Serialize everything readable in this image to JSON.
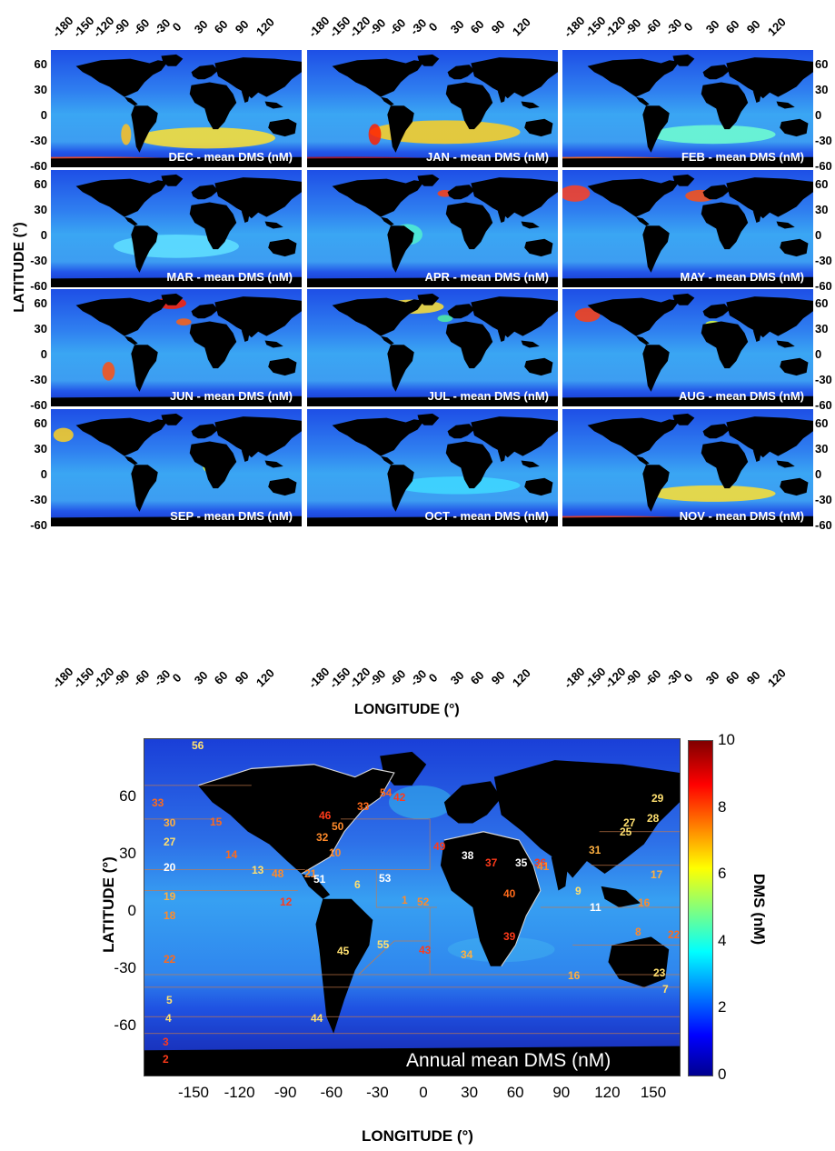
{
  "top_grid": {
    "lon_ticks": [
      "-180",
      "-150",
      "-120",
      "-90",
      "-60",
      "-30",
      "0",
      "30",
      "60",
      "90",
      "120"
    ],
    "lat_ticks": [
      "60",
      "30",
      "0",
      "-30",
      "-60"
    ],
    "x_title": "LONGITUDE (°)",
    "y_title": "LATITUDE (°)",
    "panels": [
      {
        "label": "DEC   - mean DMS (nM)"
      },
      {
        "label": "JAN   - mean DMS (nM)"
      },
      {
        "label": "FEB   - mean DMS (nM)"
      },
      {
        "label": "MAR   - mean DMS (nM)"
      },
      {
        "label": "APR   - mean DMS (nM)"
      },
      {
        "label": "MAY   - mean DMS (nM)"
      },
      {
        "label": "JUN   - mean DMS (nM)"
      },
      {
        "label": "JUL   - mean DMS (nM)"
      },
      {
        "label": "AUG   - mean DMS (nM)"
      },
      {
        "label": "SEP   - mean DMS (nM)"
      },
      {
        "label": "OCT   - mean DMS (nM)"
      },
      {
        "label": "NOV   - mean DMS (nM)"
      }
    ]
  },
  "annual_map": {
    "label": "Annual mean DMS (nM)",
    "x_title": "LONGITUDE (°)",
    "y_title": "LATITUDE (°)",
    "lon_ticks": [
      "-150",
      "-120",
      "-90",
      "-60",
      "-30",
      "0",
      "30",
      "60",
      "90",
      "120",
      "150"
    ],
    "lat_ticks": [
      "60",
      "30",
      "0",
      "-30",
      "-60"
    ],
    "colorbar": {
      "title": "DMS (nM)",
      "ticks": [
        "10",
        "8",
        "6",
        "4",
        "2",
        "0"
      ],
      "range": [
        0,
        10
      ],
      "colors": [
        "#00008f",
        "#0000ff",
        "#00ffff",
        "#ffff00",
        "#ff0000",
        "#800000"
      ]
    },
    "regions": [
      {
        "num": "56",
        "color": "#ffe070"
      },
      {
        "num": "33",
        "color": "#ff6a1a"
      },
      {
        "num": "30",
        "color": "#ffb040"
      },
      {
        "num": "27",
        "color": "#ffe070"
      },
      {
        "num": "20",
        "color": "#ffffff"
      },
      {
        "num": "19",
        "color": "#ffb040"
      },
      {
        "num": "18",
        "color": "#ff8a2a"
      },
      {
        "num": "22",
        "color": "#ff6a1a"
      },
      {
        "num": "5",
        "color": "#ffe070"
      },
      {
        "num": "4",
        "color": "#ffe070"
      },
      {
        "num": "3",
        "color": "#ff3a1a"
      },
      {
        "num": "2",
        "color": "#ff3a1a"
      },
      {
        "num": "15",
        "color": "#ff6a1a"
      },
      {
        "num": "14",
        "color": "#ff6a1a"
      },
      {
        "num": "13",
        "color": "#ffe070"
      },
      {
        "num": "48",
        "color": "#ff8a2a"
      },
      {
        "num": "21",
        "color": "#ff8a2a"
      },
      {
        "num": "32",
        "color": "#ff8a2a"
      },
      {
        "num": "50",
        "color": "#ff8a2a"
      },
      {
        "num": "46",
        "color": "#ff3a1a"
      },
      {
        "num": "33",
        "color": "#ff6a1a"
      },
      {
        "num": "42",
        "color": "#ff3a1a"
      },
      {
        "num": "54",
        "color": "#ff6a1a"
      },
      {
        "num": "10",
        "color": "#ff8a2a"
      },
      {
        "num": "51",
        "color": "#ffffff"
      },
      {
        "num": "53",
        "color": "#ffffff"
      },
      {
        "num": "12",
        "color": "#ff3a1a"
      },
      {
        "num": "6",
        "color": "#ffe070"
      },
      {
        "num": "1",
        "color": "#ff8a2a"
      },
      {
        "num": "45",
        "color": "#ffe070"
      },
      {
        "num": "55",
        "color": "#ffe070"
      },
      {
        "num": "44",
        "color": "#ffe070"
      },
      {
        "num": "52",
        "color": "#ff8a2a"
      },
      {
        "num": "43",
        "color": "#ff3a1a"
      },
      {
        "num": "49",
        "color": "#ff3a1a"
      },
      {
        "num": "38",
        "color": "#ffffff"
      },
      {
        "num": "37",
        "color": "#ff3a1a"
      },
      {
        "num": "35",
        "color": "#ffffff"
      },
      {
        "num": "36",
        "color": "#ff3a1a"
      },
      {
        "num": "41",
        "color": "#ff8a2a"
      },
      {
        "num": "40",
        "color": "#ff6a1a"
      },
      {
        "num": "39",
        "color": "#ff3a1a"
      },
      {
        "num": "34",
        "color": "#ffb040"
      },
      {
        "num": "16",
        "color": "#ffb040"
      },
      {
        "num": "9",
        "color": "#ffe070"
      },
      {
        "num": "11",
        "color": "#ffffff"
      },
      {
        "num": "31",
        "color": "#ffb040"
      },
      {
        "num": "29",
        "color": "#ffe070"
      },
      {
        "num": "28",
        "color": "#ffe070"
      },
      {
        "num": "27",
        "color": "#ffe070"
      },
      {
        "num": "25",
        "color": "#ffe070"
      },
      {
        "num": "17",
        "color": "#ffb040"
      },
      {
        "num": "16",
        "color": "#ff8a2a"
      },
      {
        "num": "8",
        "color": "#ff8a2a"
      },
      {
        "num": "22",
        "color": "#ff6a1a"
      },
      {
        "num": "23",
        "color": "#ffe070"
      },
      {
        "num": "7",
        "color": "#ffe070"
      }
    ]
  }
}
